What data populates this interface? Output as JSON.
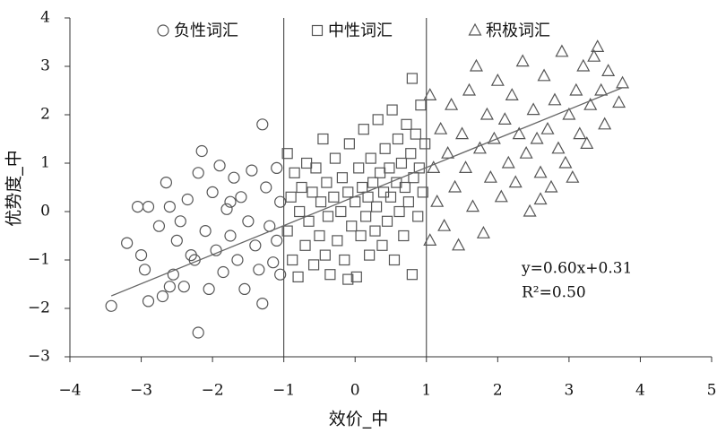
{
  "chart_data": {
    "type": "scatter",
    "xlabel": "效价_中",
    "ylabel": "优势度_中",
    "xlim": [
      -4,
      5
    ],
    "ylim": [
      -3,
      4
    ],
    "xticks": [
      {
        "value": -4,
        "label": "−4"
      },
      {
        "value": -3,
        "label": "−3"
      },
      {
        "value": -2,
        "label": "−2"
      },
      {
        "value": -1,
        "label": "−1"
      },
      0,
      1,
      2,
      3,
      4,
      5
    ],
    "yticks": [
      {
        "value": -3,
        "label": "−3"
      },
      {
        "value": -2,
        "label": "−2"
      },
      {
        "value": -1,
        "label": "−1"
      },
      0,
      1,
      2,
      3,
      4
    ],
    "dividers": [
      -1,
      1
    ],
    "trendline": {
      "slope": 0.6,
      "intercept": 0.31,
      "x": [
        -3.42,
        3.75
      ]
    },
    "annotations": [
      "y=0.60x+0.31",
      "R²=0.50"
    ],
    "series": [
      {
        "name": "负性词汇",
        "marker": "circle",
        "color": "#555555",
        "x": [
          -3.42,
          -3.2,
          -3.05,
          -3.0,
          -2.95,
          -2.9,
          -2.75,
          -2.7,
          -2.65,
          -2.6,
          -2.55,
          -2.5,
          -2.45,
          -2.4,
          -2.35,
          -2.3,
          -2.25,
          -2.2,
          -2.2,
          -2.15,
          -2.1,
          -2.05,
          -2.0,
          -1.95,
          -1.9,
          -1.85,
          -1.8,
          -1.75,
          -1.7,
          -1.65,
          -1.6,
          -1.55,
          -1.5,
          -1.45,
          -1.4,
          -1.35,
          -1.3,
          -1.3,
          -1.25,
          -1.2,
          -1.15,
          -1.1,
          -1.1,
          -1.05,
          -1.05,
          -2.6,
          -1.75,
          -2.9
        ],
        "values": [
          -1.95,
          -0.65,
          0.1,
          -0.9,
          -1.2,
          -1.85,
          -0.3,
          -1.75,
          0.6,
          0.1,
          -1.3,
          -0.6,
          -0.2,
          -1.55,
          0.25,
          -0.9,
          -1.0,
          -2.5,
          0.8,
          1.25,
          -0.4,
          -1.6,
          0.4,
          -0.8,
          0.95,
          -1.25,
          0.05,
          -0.5,
          0.7,
          -1.0,
          0.3,
          -1.6,
          -0.2,
          0.85,
          -0.7,
          -1.2,
          1.8,
          -1.9,
          0.5,
          -0.3,
          -1.05,
          0.9,
          -0.6,
          0.2,
          -1.3,
          -1.55,
          0.2,
          0.1
        ]
      },
      {
        "name": "中性词汇",
        "marker": "square",
        "color": "#555555",
        "x": [
          -0.95,
          -0.95,
          -0.9,
          -0.88,
          -0.85,
          -0.8,
          -0.78,
          -0.75,
          -0.7,
          -0.68,
          -0.65,
          -0.6,
          -0.58,
          -0.55,
          -0.5,
          -0.48,
          -0.45,
          -0.42,
          -0.4,
          -0.38,
          -0.35,
          -0.3,
          -0.28,
          -0.25,
          -0.2,
          -0.18,
          -0.15,
          -0.1,
          -0.08,
          -0.05,
          0.0,
          0.02,
          0.05,
          0.08,
          0.1,
          0.12,
          0.15,
          0.18,
          0.2,
          0.22,
          0.25,
          0.28,
          0.3,
          0.32,
          0.35,
          0.38,
          0.4,
          0.42,
          0.45,
          0.48,
          0.5,
          0.52,
          0.55,
          0.58,
          0.6,
          0.62,
          0.65,
          0.68,
          0.7,
          0.72,
          0.75,
          0.78,
          0.8,
          0.8,
          0.82,
          0.85,
          0.88,
          0.9,
          0.92,
          0.95,
          0.98,
          -0.1
        ],
        "values": [
          1.2,
          -0.4,
          0.3,
          -1.0,
          0.8,
          -1.35,
          0.0,
          0.5,
          -0.7,
          1.0,
          -0.2,
          0.4,
          -1.1,
          0.9,
          -0.5,
          0.2,
          1.5,
          -0.9,
          0.6,
          -0.1,
          -1.3,
          0.3,
          1.1,
          -0.6,
          0.0,
          0.7,
          -1.0,
          0.4,
          1.4,
          -0.3,
          0.2,
          -1.35,
          0.9,
          -0.5,
          0.5,
          1.7,
          -0.1,
          0.3,
          -0.9,
          1.1,
          0.6,
          -0.4,
          0.1,
          1.9,
          0.8,
          -0.7,
          0.4,
          1.3,
          -0.2,
          0.9,
          0.3,
          2.1,
          -1.0,
          0.6,
          1.5,
          0.0,
          1.0,
          -0.5,
          0.5,
          1.8,
          0.2,
          1.2,
          2.75,
          -1.3,
          0.7,
          1.6,
          -0.1,
          0.9,
          2.2,
          0.4,
          1.4,
          -1.4
        ]
      },
      {
        "name": "积极词汇",
        "marker": "triangle",
        "color": "#555555",
        "x": [
          1.05,
          1.05,
          1.1,
          1.15,
          1.2,
          1.25,
          1.3,
          1.35,
          1.4,
          1.45,
          1.5,
          1.55,
          1.6,
          1.65,
          1.7,
          1.75,
          1.8,
          1.85,
          1.9,
          1.95,
          2.0,
          2.05,
          2.1,
          2.15,
          2.2,
          2.25,
          2.3,
          2.35,
          2.4,
          2.45,
          2.5,
          2.55,
          2.6,
          2.65,
          2.7,
          2.75,
          2.8,
          2.85,
          2.9,
          2.95,
          3.0,
          3.05,
          3.1,
          3.15,
          3.2,
          3.25,
          3.3,
          3.35,
          3.4,
          3.45,
          3.5,
          3.55,
          3.7,
          3.75,
          2.6
        ],
        "values": [
          2.4,
          -0.6,
          0.9,
          0.2,
          1.7,
          -0.3,
          1.2,
          2.2,
          0.5,
          -0.7,
          1.6,
          0.9,
          2.5,
          0.1,
          3.0,
          1.3,
          -0.45,
          2.0,
          0.7,
          1.5,
          2.7,
          0.3,
          1.9,
          1.0,
          2.4,
          0.6,
          1.6,
          3.1,
          1.2,
          0.0,
          2.1,
          1.5,
          0.8,
          2.8,
          1.7,
          0.5,
          2.3,
          1.3,
          3.3,
          1.0,
          2.0,
          0.7,
          2.5,
          1.6,
          3.0,
          1.4,
          2.2,
          3.2,
          3.4,
          2.5,
          1.8,
          2.9,
          2.25,
          2.65,
          0.25
        ]
      }
    ]
  }
}
